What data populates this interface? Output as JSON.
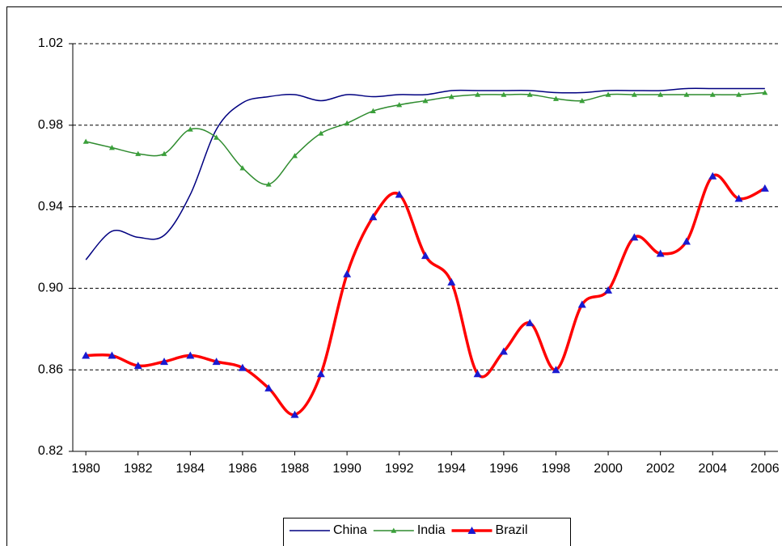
{
  "chart_data": {
    "type": "line",
    "x": [
      1980,
      1981,
      1982,
      1983,
      1984,
      1985,
      1986,
      1987,
      1988,
      1989,
      1990,
      1991,
      1992,
      1993,
      1994,
      1995,
      1996,
      1997,
      1998,
      1999,
      2000,
      2001,
      2002,
      2003,
      2004,
      2005,
      2006
    ],
    "series": [
      {
        "name": "China",
        "color": "#000080",
        "values": [
          0.914,
          0.928,
          0.925,
          0.926,
          0.946,
          0.978,
          0.991,
          0.994,
          0.995,
          0.992,
          0.995,
          0.994,
          0.995,
          0.995,
          0.997,
          0.997,
          0.997,
          0.997,
          0.996,
          0.996,
          0.997,
          0.997,
          0.997,
          0.998,
          0.998,
          0.998,
          0.998
        ]
      },
      {
        "name": "India",
        "color": "#2e8b2e",
        "marker": "triangle",
        "marker_color": "#3aa03a",
        "values": [
          0.972,
          0.969,
          0.966,
          0.966,
          0.978,
          0.974,
          0.959,
          0.951,
          0.965,
          0.976,
          0.981,
          0.987,
          0.99,
          0.992,
          0.994,
          0.995,
          0.995,
          0.995,
          0.993,
          0.992,
          0.995,
          0.995,
          0.995,
          0.995,
          0.995,
          0.995,
          0.996
        ]
      },
      {
        "name": "Brazil",
        "color": "#ff0000",
        "marker": "triangle",
        "marker_color": "#1a1ad0",
        "values": [
          0.867,
          0.867,
          0.862,
          0.864,
          0.867,
          0.864,
          0.861,
          0.851,
          0.838,
          0.858,
          0.907,
          0.935,
          0.946,
          0.916,
          0.903,
          0.858,
          0.869,
          0.883,
          0.86,
          0.892,
          0.899,
          0.925,
          0.917,
          0.923,
          0.955,
          0.944,
          0.949
        ]
      }
    ],
    "xlim": [
      1979.5,
      2006.5
    ],
    "xticks": [
      1980,
      1982,
      1984,
      1986,
      1988,
      1990,
      1992,
      1994,
      1996,
      1998,
      2000,
      2002,
      2004,
      2006
    ],
    "ylim": [
      0.82,
      1.02
    ],
    "yticks": [
      0.82,
      0.86,
      {
        "value": 0.9,
        "label": "0.90"
      },
      0.94,
      0.98,
      1.02
    ],
    "grid": true,
    "legend": "bottom"
  }
}
